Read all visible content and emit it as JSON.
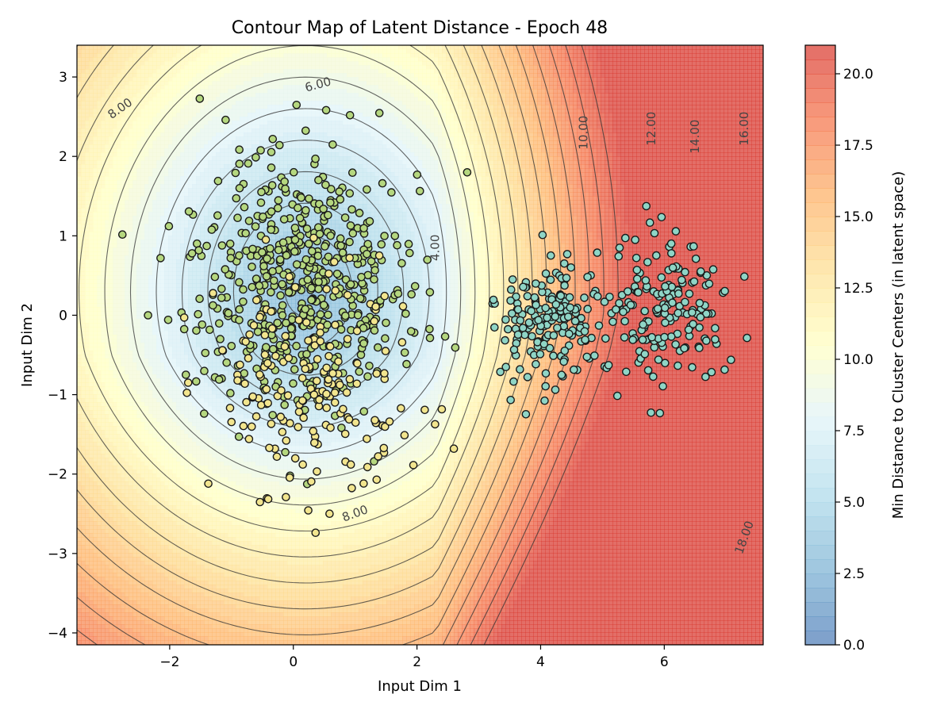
{
  "chart_data": {
    "type": "contour_scatter",
    "title": "Contour Map of Latent Distance - Epoch 48",
    "xlabel": "Input Dim 1",
    "ylabel": "Input Dim 2",
    "xlim": [
      -3.5,
      7.6
    ],
    "ylim": [
      -4.15,
      3.4
    ],
    "xticks": [
      -2,
      0,
      2,
      4,
      6
    ],
    "yticks": [
      -4,
      -3,
      -2,
      -1,
      0,
      1,
      2,
      3
    ],
    "colorbar": {
      "label": "Min Distance to Cluster Centers (in latent space)",
      "range": [
        0.0,
        21.0
      ],
      "ticks": [
        "0.0",
        "2.5",
        "5.0",
        "7.5",
        "10.0",
        "12.5",
        "15.0",
        "17.5",
        "20.0"
      ],
      "colormap": "RdYlBu_r"
    },
    "contour_labels": [
      "4.00",
      "6.00",
      "8.00",
      "8.00",
      "10.00",
      "12.00",
      "14.00",
      "16.00",
      "18.00"
    ],
    "clusters": [
      {
        "center": [
          0.1,
          0.4
        ],
        "spread": [
          0.85,
          0.8
        ],
        "count": 520,
        "color": "#b5d77f"
      },
      {
        "center": [
          0.3,
          -0.9
        ],
        "spread": [
          0.85,
          0.75
        ],
        "count": 180,
        "color": "#f2e58e"
      },
      {
        "center": [
          4.2,
          -0.05
        ],
        "spread": [
          0.45,
          0.4
        ],
        "count": 170,
        "color": "#8fd5c6"
      },
      {
        "center": [
          6.0,
          0.05
        ],
        "spread": [
          0.5,
          0.45
        ],
        "count": 170,
        "color": "#8fd5c6"
      }
    ],
    "grid": false
  }
}
